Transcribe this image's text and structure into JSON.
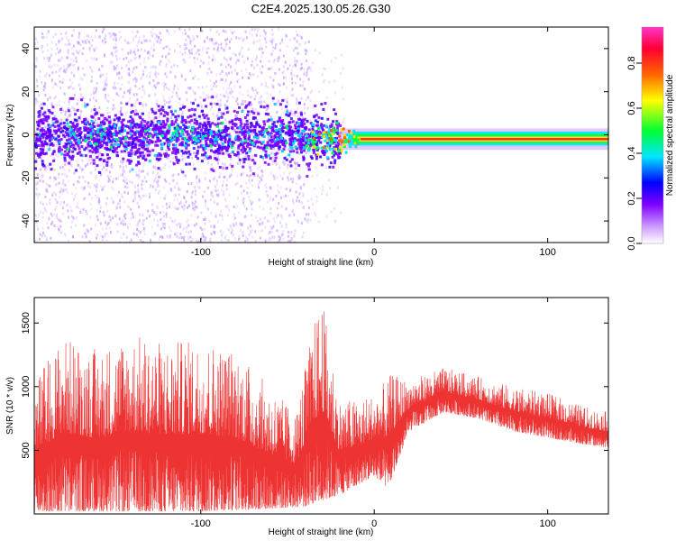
{
  "title": "C2E4.2025.130.05.26.G30",
  "chart_data": [
    {
      "type": "heatmap",
      "xlabel": "Height of straight line (km)",
      "ylabel": "Frequency (Hz)",
      "xlim": [
        -196,
        135
      ],
      "ylim": [
        -50,
        50
      ],
      "x_ticks": [
        -100,
        0,
        100
      ],
      "y_ticks": [
        -40,
        -20,
        0,
        20,
        40
      ],
      "colorbar": {
        "label": "Normalized spectral amplitude",
        "range": [
          0,
          0.96
        ],
        "ticks": [
          "0.0",
          "0.2",
          "0.4",
          "0.6",
          "0.8"
        ],
        "colors": [
          "#ffffff",
          "#cc99ff",
          "#7f00ff",
          "#0000ff",
          "#00e5ff",
          "#00ff33",
          "#ffff00",
          "#ff6600",
          "#ff0033",
          "#ff33cc"
        ]
      },
      "description_values": {
        "signal_band_center_hz": [
          {
            "x": -196,
            "y": 0
          },
          {
            "x": -40,
            "y": 0
          },
          {
            "x": -20,
            "y": -2
          },
          {
            "x": 0,
            "y": -2
          },
          {
            "x": 135,
            "y": -2
          }
        ]
      }
    },
    {
      "type": "line",
      "xlabel": "Height of straight line (km)",
      "ylabel": "SNR (10 * v/v)",
      "xlim": [
        -196,
        135
      ],
      "ylim": [
        0,
        1700
      ],
      "x_ticks": [
        -100,
        0,
        100
      ],
      "y_ticks": [
        500,
        1000,
        1500
      ],
      "series": [
        {
          "color": "#ee3333",
          "envelope_upper": [
            {
              "x": -196,
              "y": 1050
            },
            {
              "x": -180,
              "y": 1400
            },
            {
              "x": -160,
              "y": 1300
            },
            {
              "x": -140,
              "y": 1420
            },
            {
              "x": -120,
              "y": 1350
            },
            {
              "x": -100,
              "y": 1380
            },
            {
              "x": -80,
              "y": 1300
            },
            {
              "x": -60,
              "y": 1000
            },
            {
              "x": -45,
              "y": 800
            },
            {
              "x": -35,
              "y": 1500
            },
            {
              "x": -30,
              "y": 1700
            },
            {
              "x": -20,
              "y": 900
            },
            {
              "x": -10,
              "y": 900
            },
            {
              "x": 0,
              "y": 950
            },
            {
              "x": 10,
              "y": 1100
            },
            {
              "x": 20,
              "y": 1050
            },
            {
              "x": 40,
              "y": 1150
            },
            {
              "x": 60,
              "y": 1080
            },
            {
              "x": 80,
              "y": 1000
            },
            {
              "x": 100,
              "y": 950
            },
            {
              "x": 120,
              "y": 850
            },
            {
              "x": 135,
              "y": 800
            }
          ],
          "envelope_lower": [
            {
              "x": -196,
              "y": 20
            },
            {
              "x": -100,
              "y": 20
            },
            {
              "x": -60,
              "y": 40
            },
            {
              "x": -40,
              "y": 60
            },
            {
              "x": -20,
              "y": 150
            },
            {
              "x": 0,
              "y": 300
            },
            {
              "x": 8,
              "y": 200
            },
            {
              "x": 20,
              "y": 650
            },
            {
              "x": 40,
              "y": 800
            },
            {
              "x": 60,
              "y": 750
            },
            {
              "x": 80,
              "y": 650
            },
            {
              "x": 100,
              "y": 600
            },
            {
              "x": 120,
              "y": 550
            },
            {
              "x": 135,
              "y": 520
            }
          ]
        }
      ]
    }
  ]
}
